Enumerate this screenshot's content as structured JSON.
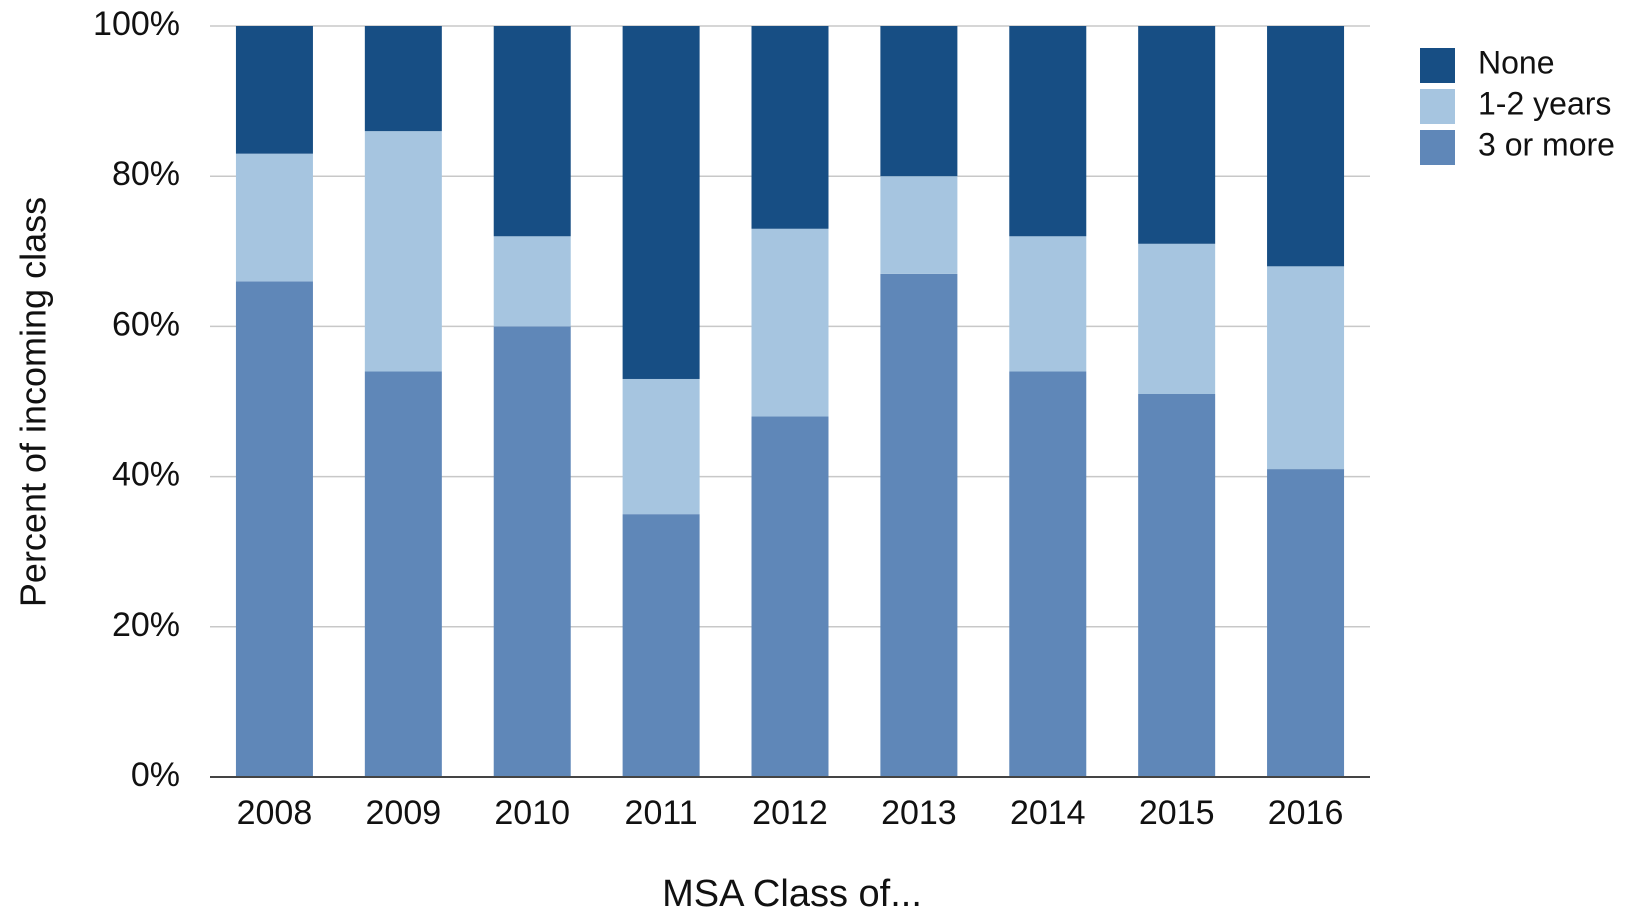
{
  "chart_data": {
    "type": "stacked_bar",
    "x_label": "MSA Class of...",
    "y_label": "Percent of incoming class",
    "categories": [
      "2008",
      "2009",
      "2010",
      "2011",
      "2012",
      "2013",
      "2014",
      "2015",
      "2016"
    ],
    "series": [
      {
        "name": "None",
        "color": "#174e84",
        "values": [
          17,
          14,
          28,
          47,
          27,
          20,
          28,
          29,
          32
        ]
      },
      {
        "name": "1-2 years",
        "color": "#a6c5e0",
        "values": [
          17,
          32,
          12,
          18,
          25,
          13,
          18,
          20,
          27
        ]
      },
      {
        "name": "3 or more",
        "color": "#5f87b8",
        "values": [
          66,
          54,
          60,
          35,
          48,
          67,
          54,
          51,
          41
        ]
      }
    ],
    "ylim": [
      0,
      100
    ],
    "yticks": [
      {
        "value": 0,
        "label": "0%"
      },
      {
        "value": 20,
        "label": "20%"
      },
      {
        "value": 40,
        "label": "40%"
      },
      {
        "value": 60,
        "label": "60%"
      },
      {
        "value": 80,
        "label": "80%"
      },
      {
        "value": 100,
        "label": "100%"
      }
    ],
    "grid": true,
    "legend": "top-right"
  }
}
